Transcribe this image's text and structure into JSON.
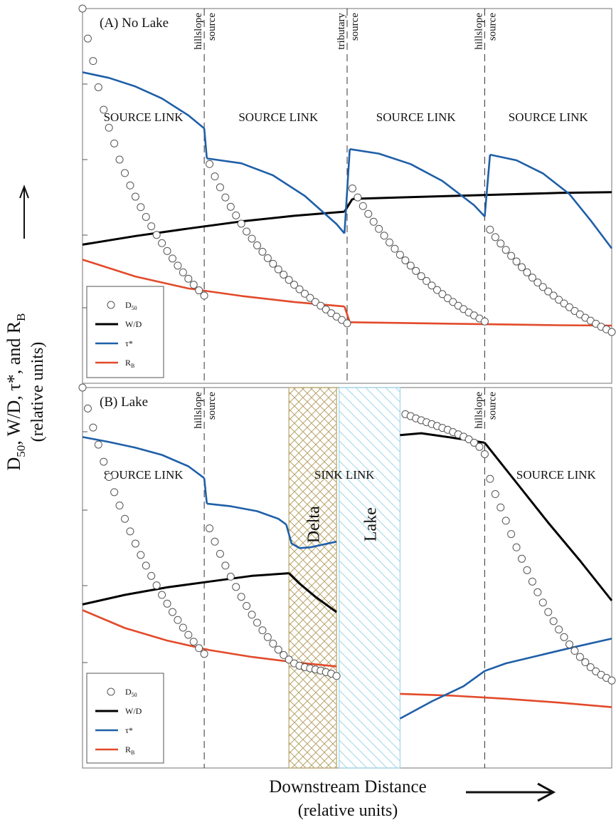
{
  "figure": {
    "ylabel_main": "D",
    "ylabel_sub": "50",
    "ylabel_rest": ", W/D, τ*, and R",
    "ylabel_sub2": "B",
    "ylabel_units": "(relative units)",
    "xlabel": "Downstream Distance",
    "xlabel_units": "(relative units)"
  },
  "colors": {
    "d50": "#555555",
    "wd": "#000000",
    "tau": "#1f5fa8",
    "rb": "#e24a2a",
    "delta_hatch": "#b8a46a",
    "lake_hatch": "#9fd6e8"
  },
  "legend": [
    {
      "key": "d50",
      "label": "D",
      "sub": "50",
      "marker": "circle"
    },
    {
      "key": "wd",
      "label": "W/D",
      "sub": "",
      "marker": "line"
    },
    {
      "key": "tau",
      "label": "τ*",
      "sub": "",
      "marker": "line"
    },
    {
      "key": "rb",
      "label": "R",
      "sub": "B",
      "marker": "line"
    }
  ],
  "chart_data": [
    {
      "type": "line",
      "title": "(A) No Lake",
      "xlim": [
        0,
        100
      ],
      "ylim": [
        0,
        100
      ],
      "boundaries": [
        {
          "x": 23,
          "labels": [
            "hillslope",
            "source"
          ]
        },
        {
          "x": 50,
          "labels": [
            "tributary",
            "source"
          ]
        },
        {
          "x": 76,
          "labels": [
            "hillslope",
            "source"
          ]
        }
      ],
      "region_labels": [
        {
          "x": 11.5,
          "y": 70,
          "text": "SOURCE LINK"
        },
        {
          "x": 37,
          "y": 70,
          "text": "SOURCE LINK"
        },
        {
          "x": 63,
          "y": 70,
          "text": "SOURCE LINK"
        },
        {
          "x": 88,
          "y": 70,
          "text": "SOURCE LINK"
        }
      ],
      "series": [
        {
          "key": "tau",
          "segments": [
            {
              "x": [
                0,
                5,
                10,
                15,
                20,
                23
              ],
              "y": [
                83,
                81.5,
                79.2,
                76,
                71.5,
                68
              ]
            },
            {
              "x": [
                23,
                23.5
              ],
              "y": [
                68,
                60
              ]
            },
            {
              "x": [
                23.5,
                30,
                36,
                42,
                48,
                49.5
              ],
              "y": [
                60,
                58.7,
                55.5,
                50,
                42.5,
                40
              ]
            },
            {
              "x": [
                49.5,
                50.5
              ],
              "y": [
                40,
                62.5
              ]
            },
            {
              "x": [
                50.5,
                56,
                62,
                68,
                74,
                76
              ],
              "y": [
                62.5,
                61.3,
                58.5,
                54,
                47.5,
                44.5
              ]
            },
            {
              "x": [
                76,
                77
              ],
              "y": [
                44.5,
                61
              ]
            },
            {
              "x": [
                77,
                82,
                87,
                92,
                96,
                100
              ],
              "y": [
                61,
                59.5,
                56,
                50.5,
                43.5,
                36
              ]
            }
          ]
        },
        {
          "key": "wd",
          "segments": [
            {
              "x": [
                0,
                10,
                20,
                30,
                40,
                49.5
              ],
              "y": [
                37,
                39.3,
                41.3,
                43.2,
                44.7,
                45.8
              ]
            },
            {
              "x": [
                49.5,
                51
              ],
              "y": [
                45.8,
                49.2
              ]
            },
            {
              "x": [
                51,
                60,
                70,
                80,
                90,
                100
              ],
              "y": [
                49.2,
                49.6,
                50,
                50.4,
                50.8,
                51
              ]
            }
          ]
        },
        {
          "key": "rb",
          "segments": [
            {
              "x": [
                0,
                10,
                20,
                30,
                40,
                49.5
              ],
              "y": [
                33,
                28.5,
                25.3,
                23.3,
                21.7,
                20.5
              ]
            },
            {
              "x": [
                49.5,
                50.5
              ],
              "y": [
                20.5,
                16.3
              ]
            },
            {
              "x": [
                50.5,
                60,
                70,
                80,
                90,
                100
              ],
              "y": [
                16.3,
                16.1,
                15.9,
                15.7,
                15.5,
                15.4
              ]
            }
          ]
        },
        {
          "key": "d50",
          "segments": [
            {
              "x": [
                0,
                1,
                2,
                3,
                4,
                5,
                6,
                7,
                8,
                9,
                10,
                11,
                12,
                13,
                14,
                15,
                16,
                17,
                18,
                19,
                20,
                21,
                22,
                23
              ],
              "y": [
                100,
                92,
                86,
                79,
                73,
                68.2,
                64,
                59.7,
                56.1,
                52.8,
                49.8,
                47,
                44.4,
                41.9,
                39.6,
                37.4,
                35.3,
                33.3,
                31.4,
                29.6,
                27.9,
                26.3,
                24.8,
                23.4
              ]
            },
            {
              "x": [
                24,
                25,
                26,
                27,
                28,
                29,
                30,
                31,
                32,
                33,
                34,
                35,
                36,
                37,
                38,
                39,
                40,
                41,
                42,
                43,
                44,
                45,
                46,
                47,
                48,
                49,
                50
              ],
              "y": [
                58.5,
                55.2,
                52.3,
                49.6,
                47.1,
                44.8,
                42.6,
                40.5,
                38.6,
                36.8,
                35.1,
                33.4,
                31.9,
                30.4,
                29,
                27.6,
                26.3,
                25.1,
                23.9,
                22.8,
                21.7,
                20.7,
                19.7,
                18.7,
                17.8,
                16.9,
                16
              ]
            },
            {
              "x": [
                51,
                52,
                53,
                54,
                55,
                56,
                57,
                58,
                59,
                60,
                61,
                62,
                63,
                64,
                65,
                66,
                67,
                68,
                69,
                70,
                71,
                72,
                73,
                74,
                75,
                76
              ],
              "y": [
                52,
                49.6,
                47.3,
                45.2,
                43.1,
                41.2,
                39.4,
                37.6,
                35.9,
                34.3,
                32.8,
                31.4,
                30,
                28.6,
                27.3,
                26.1,
                24.9,
                23.8,
                22.7,
                21.7,
                20.7,
                19.8,
                18.9,
                18.1,
                17.3,
                16.5
              ]
            },
            {
              "x": [
                77,
                78,
                79,
                80,
                81,
                82,
                83,
                84,
                85,
                86,
                87,
                88,
                89,
                90,
                91,
                92,
                93,
                94,
                95,
                96,
                97,
                98,
                99,
                100
              ],
              "y": [
                41,
                39,
                37.3,
                35.6,
                34,
                32.5,
                31,
                29.6,
                28.2,
                26.9,
                25.7,
                24.5,
                23.4,
                22.3,
                21.3,
                20.3,
                19.3,
                18.4,
                17.5,
                16.7,
                15.9,
                15.1,
                14.4,
                13.7
              ]
            }
          ]
        }
      ]
    },
    {
      "type": "line",
      "title": "(B) Lake",
      "xlim": [
        0,
        100
      ],
      "ylim": [
        0,
        100
      ],
      "boundaries": [
        {
          "x": 23,
          "labels": [
            "hillslope",
            "source"
          ]
        },
        {
          "x": 76,
          "labels": [
            "hillslope",
            "source"
          ]
        }
      ],
      "zones": [
        {
          "name": "Delta",
          "x0": 39,
          "x1": 48,
          "pattern": "crosshatch"
        },
        {
          "name": "Lake",
          "x0": 48.5,
          "x1": 60,
          "pattern": "diagonal"
        }
      ],
      "region_labels": [
        {
          "x": 11.5,
          "y": 76,
          "text": "SOURCE LINK"
        },
        {
          "x": 49.5,
          "y": 76,
          "text": "SINK LINK"
        },
        {
          "x": 89.5,
          "y": 76,
          "text": "SOURCE LINK"
        }
      ],
      "series": [
        {
          "key": "tau",
          "segments": [
            {
              "x": [
                0,
                5,
                10,
                15,
                20,
                23
              ],
              "y": [
                87,
                85.7,
                84.2,
                82.3,
                79.3,
                76.2
              ]
            },
            {
              "x": [
                23,
                23.5
              ],
              "y": [
                76.2,
                69.5
              ]
            },
            {
              "x": [
                23.5,
                28,
                33,
                37,
                38.5
              ],
              "y": [
                69.5,
                68.8,
                67.5,
                65.5,
                64
              ]
            },
            {
              "x": [
                38.5,
                39.5,
                41,
                43,
                48
              ],
              "y": [
                64,
                59,
                57.8,
                58,
                59.5
              ]
            },
            {
              "x": [
                60,
                66,
                72,
                76,
                80,
                86,
                92,
                100
              ],
              "y": [
                13,
                17.5,
                21.5,
                25.5,
                27.5,
                29.5,
                31.5,
                34
              ]
            }
          ]
        },
        {
          "key": "wd",
          "segments": [
            {
              "x": [
                0,
                8,
                16,
                24,
                32,
                39
              ],
              "y": [
                43,
                45.5,
                47.5,
                49,
                50.5,
                51.2
              ]
            },
            {
              "x": [
                39,
                41,
                44,
                48
              ],
              "y": [
                51.2,
                48.5,
                45,
                41
              ]
            },
            {
              "x": [
                60,
                64,
                70,
                76
              ],
              "y": [
                87.5,
                88,
                86.8,
                85.5
              ]
            },
            {
              "x": [
                76,
                82,
                88,
                94,
                100
              ],
              "y": [
                85.5,
                75,
                64.5,
                54.5,
                44
              ]
            }
          ]
        },
        {
          "key": "rb",
          "segments": [
            {
              "x": [
                0,
                8,
                16,
                24,
                32,
                40,
                48
              ],
              "y": [
                41.5,
                36.8,
                33.5,
                31,
                29.2,
                27.8,
                26.7
              ]
            },
            {
              "x": [
                60,
                70,
                80,
                90,
                100
              ],
              "y": [
                19.5,
                19,
                18.2,
                17.2,
                16
              ]
            }
          ]
        },
        {
          "key": "d50",
          "segments": [
            {
              "x": [
                0,
                1,
                2,
                3,
                4,
                5,
                6,
                7,
                8,
                9,
                10,
                11,
                12,
                13,
                14,
                15,
                16,
                17,
                18,
                19,
                20,
                21,
                22,
                23
              ],
              "y": [
                100,
                94.5,
                89.5,
                85,
                80.5,
                76.5,
                72.5,
                69,
                65.5,
                62.2,
                59,
                56,
                53.2,
                50.5,
                48,
                45.5,
                43.2,
                41,
                38.9,
                36.9,
                35,
                33.2,
                31.5,
                30
              ]
            },
            {
              "x": [
                24,
                25,
                26,
                27,
                28,
                29,
                30,
                31,
                32,
                33,
                34,
                35,
                36,
                37,
                38,
                39,
                40,
                41,
                42,
                43,
                44,
                45,
                46,
                47,
                48
              ],
              "y": [
                63,
                59.5,
                56.3,
                53.2,
                50.3,
                47.6,
                45,
                42.6,
                40.3,
                38.2,
                36.2,
                34.4,
                32.7,
                31.1,
                29.7,
                28.5,
                27.5,
                26.9,
                26.5,
                26.2,
                25.9,
                25.6,
                25.2,
                24.8,
                24.2
              ]
            },
            {
              "x": [
                61,
                62,
                63,
                64,
                65,
                66,
                67,
                68,
                69,
                70,
                71,
                72,
                73,
                74,
                75,
                76
              ],
              "y": [
                93,
                92.5,
                91.9,
                91.4,
                90.9,
                90.4,
                89.9,
                89.4,
                88.9,
                88.3,
                87.7,
                87.1,
                86.4,
                85.5,
                84.4,
                82.5
              ]
            },
            {
              "x": [
                77,
                78,
                79,
                80,
                81,
                82,
                83,
                84,
                85,
                86,
                87,
                88,
                89,
                90,
                91,
                92,
                93,
                94,
                95,
                96,
                97,
                98,
                99,
                100
              ],
              "y": [
                76,
                72,
                68.5,
                65,
                61.5,
                58,
                55,
                52,
                49,
                46.2,
                43.5,
                41,
                38.6,
                36.4,
                34.4,
                32.5,
                30.8,
                29.2,
                27.8,
                26.5,
                25.4,
                24.5,
                23.7,
                23
              ]
            }
          ]
        }
      ]
    }
  ]
}
